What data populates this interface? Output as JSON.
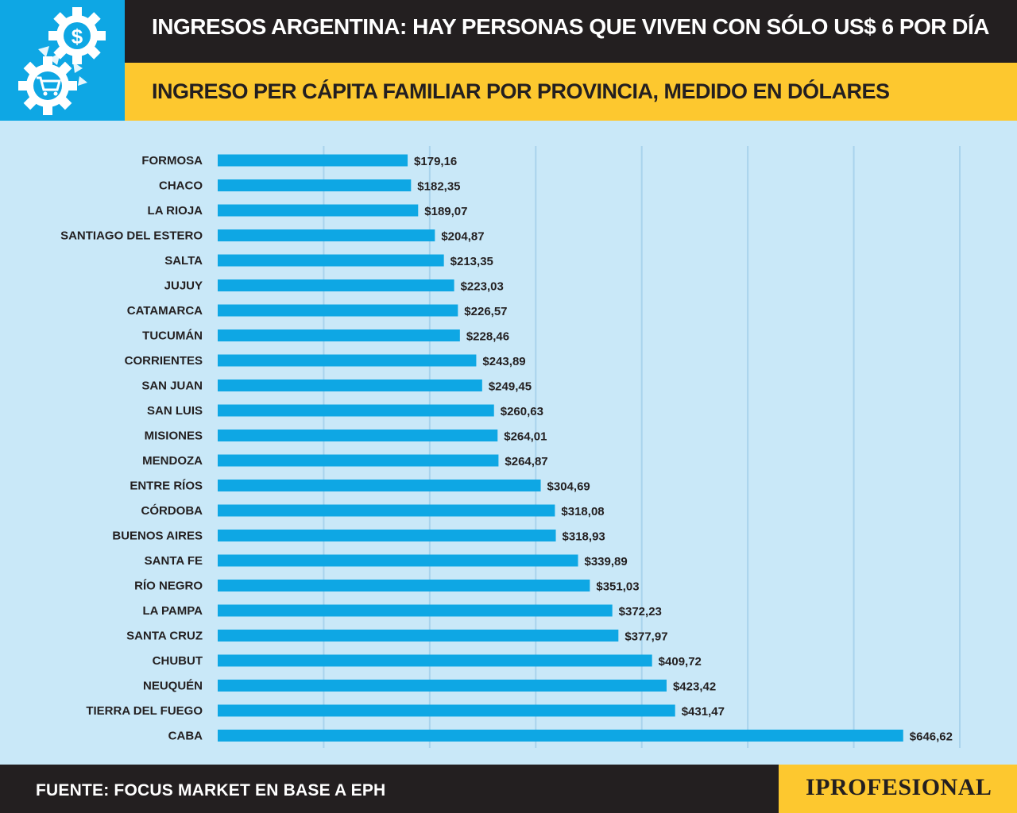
{
  "header": {
    "title": "INGRESOS ARGENTINA: HAY PERSONAS QUE VIVEN CON SÓLO US$ 6 POR DÍA",
    "subtitle": "INGRESO PER CÁPITA FAMILIAR POR PROVINCIA, MEDIDO EN DÓLARES",
    "icons": [
      "dollar-gear-icon",
      "cart-gear-icon"
    ]
  },
  "footer": {
    "source": "FUENTE: FOCUS MARKET EN BASE A EPH",
    "brand": "IPROFESIONAL"
  },
  "colors": {
    "bar": "#0ea7e4",
    "background": "#c9e8f8",
    "header_dark": "#231f20",
    "header_yellow": "#fdc82f"
  },
  "chart_data": {
    "type": "bar",
    "orientation": "horizontal",
    "title": "INGRESO PER CÁPITA FAMILIAR POR PROVINCIA, MEDIDO EN DÓLARES",
    "xlim": [
      0,
      700
    ],
    "grid": true,
    "categories": [
      "FORMOSA",
      "CHACO",
      "LA RIOJA",
      "SANTIAGO DEL ESTERO",
      "SALTA",
      "JUJUY",
      "CATAMARCA",
      "TUCUMÁN",
      "CORRIENTES",
      "SAN JUAN",
      "SAN LUIS",
      "MISIONES",
      "MENDOZA",
      "ENTRE RÍOS",
      "CÓRDOBA",
      "BUENOS AIRES",
      "SANTA FE",
      "RÍO NEGRO",
      "LA PAMPA",
      "SANTA CRUZ",
      "CHUBUT",
      "NEUQUÉN",
      "TIERRA DEL FUEGO",
      "CABA"
    ],
    "values": [
      179.16,
      182.35,
      189.07,
      204.87,
      213.35,
      223.03,
      226.57,
      228.46,
      243.89,
      249.45,
      260.63,
      264.01,
      264.87,
      304.69,
      318.08,
      318.93,
      339.89,
      351.03,
      372.23,
      377.97,
      409.72,
      423.42,
      431.47,
      646.62
    ],
    "labels": [
      "$179,16",
      "$182,35",
      "$189,07",
      "$204,87",
      "$213,35",
      "$223,03",
      "$226,57",
      "$228,46",
      "$243,89",
      "$249,45",
      "$260,63",
      "$264,01",
      "$264,87",
      "$304,69",
      "$318,08",
      "$318,93",
      "$339,89",
      "$351,03",
      "$372,23",
      "$377,97",
      "$409,72",
      "$423,42",
      "$431,47",
      "$646,62"
    ]
  }
}
